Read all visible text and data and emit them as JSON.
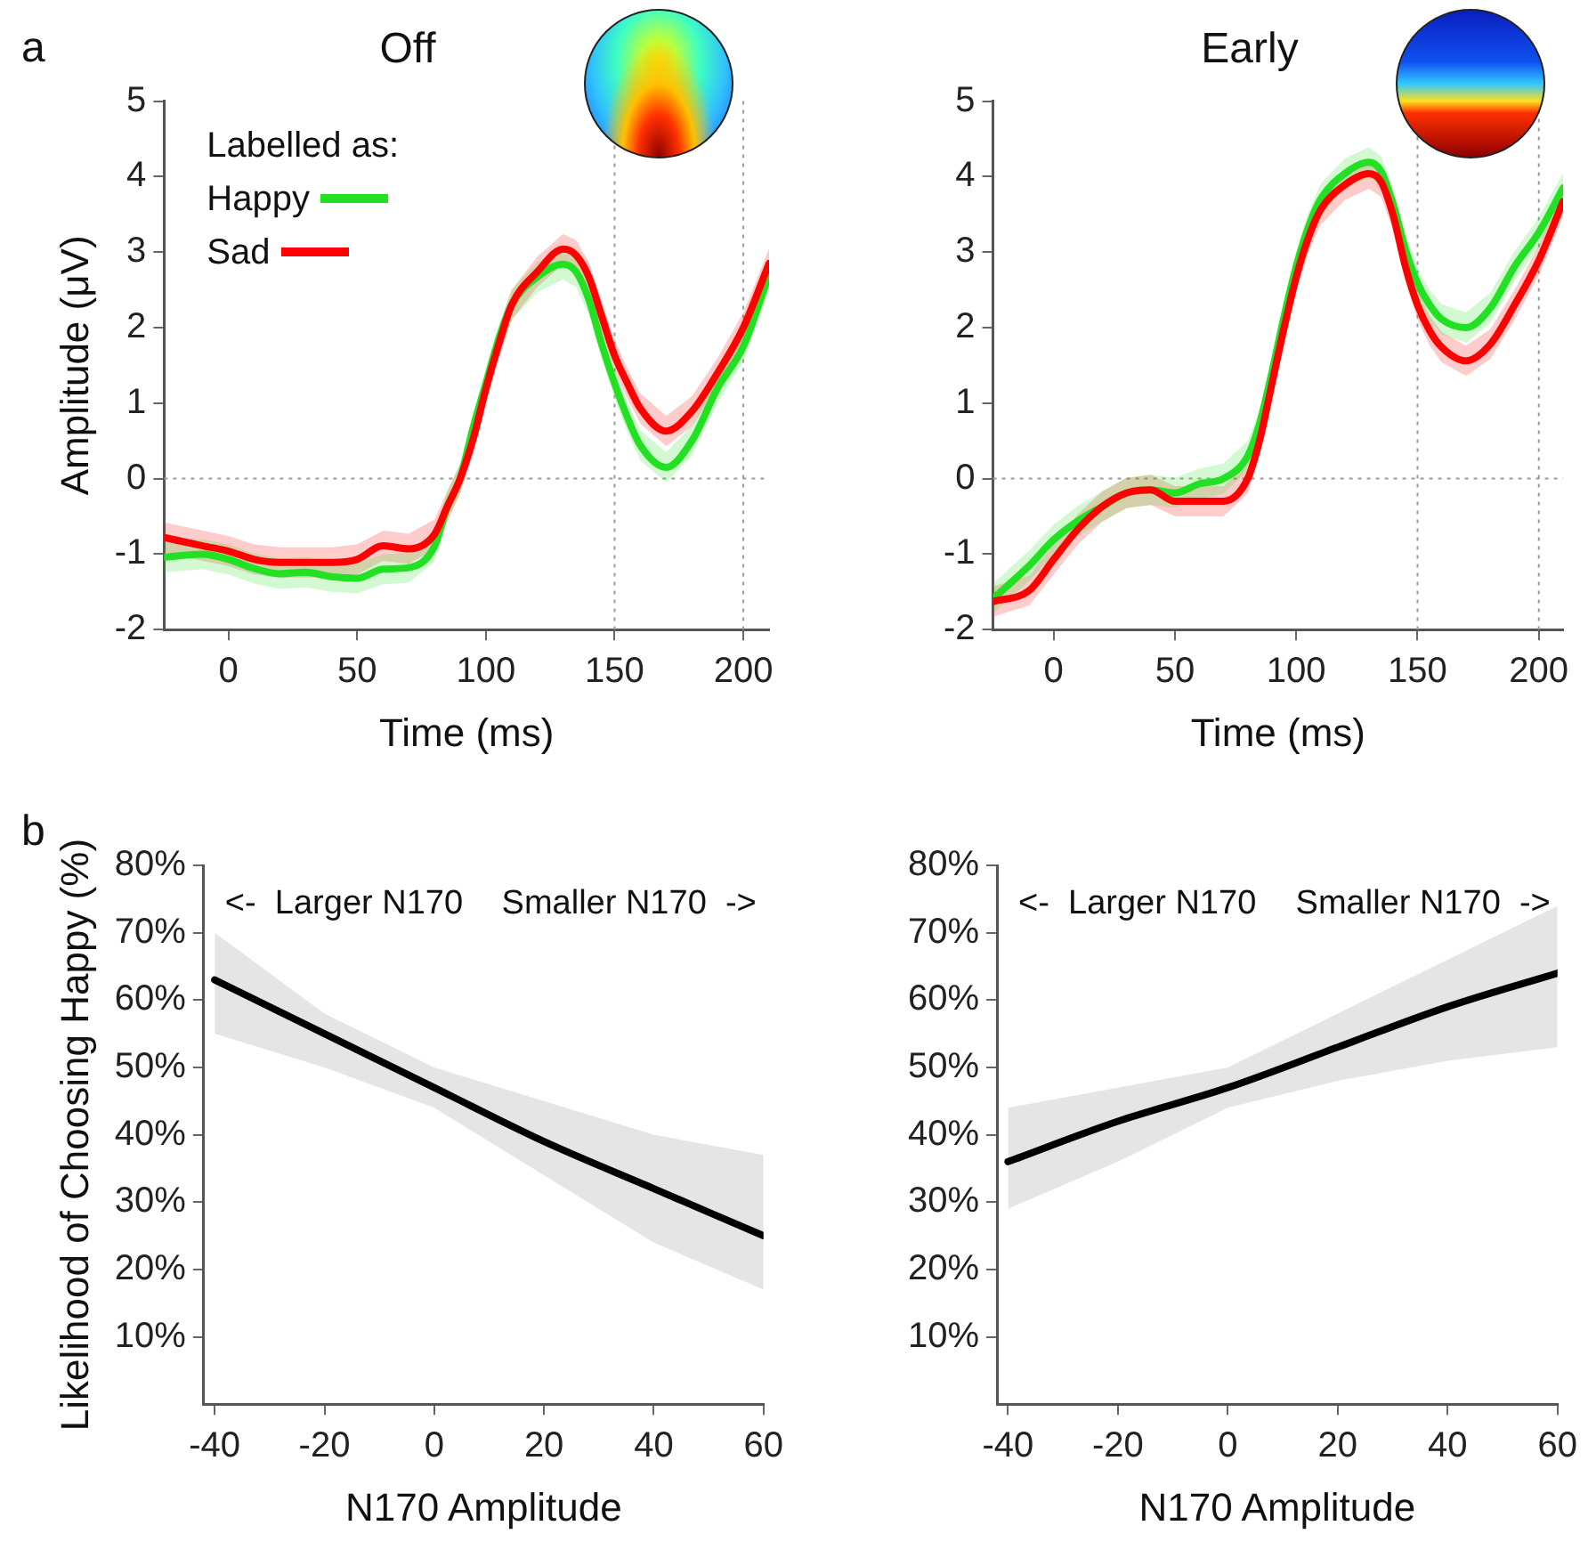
{
  "chart_data": [
    {
      "type": "line",
      "title": "Off",
      "xlabel": "Time (ms)",
      "ylabel": "Amplitude (μV)",
      "legend": "top left",
      "legend_title": "Labelled as:",
      "annotations": [
        "a"
      ],
      "x": [
        -25,
        -10,
        0,
        10,
        20,
        30,
        40,
        50,
        60,
        70,
        80,
        85,
        90,
        95,
        100,
        105,
        110,
        120,
        130,
        135,
        140,
        145,
        150,
        155,
        160,
        170,
        180,
        190,
        200,
        210
      ],
      "xlim": [
        -25,
        210
      ],
      "xticks": [
        0,
        50,
        100,
        150,
        200
      ],
      "ylim": [
        -2,
        5
      ],
      "yticks": [
        -2,
        -1,
        0,
        1,
        2,
        3,
        4,
        5
      ],
      "ref_lines": [
        {
          "axis": "y",
          "value": 0,
          "color": "#9a9a9a",
          "line_style": "dotted"
        },
        {
          "axis": "x",
          "value": 150,
          "color": "#9a9a9a",
          "line_style": "dotted"
        },
        {
          "axis": "x",
          "value": 200,
          "color": "#9a9a9a",
          "line_style": "dotted"
        }
      ],
      "series": [
        {
          "name": "Happy",
          "color": "#22e022",
          "values": [
            -1.04,
            -1.0,
            -1.07,
            -1.19,
            -1.26,
            -1.24,
            -1.3,
            -1.32,
            -1.2,
            -1.18,
            -0.9,
            -0.37,
            0,
            0.67,
            1.26,
            1.85,
            2.3,
            2.67,
            2.84,
            2.74,
            2.37,
            1.78,
            1.26,
            0.81,
            0.44,
            0.15,
            0.5,
            1.2,
            1.75,
            2.7
          ],
          "lower": [
            -1.24,
            -1.2,
            -1.27,
            -1.39,
            -1.46,
            -1.44,
            -1.5,
            -1.52,
            -1.4,
            -1.38,
            -1.1,
            -0.57,
            -0.2,
            0.47,
            1.06,
            1.65,
            2.1,
            2.47,
            2.64,
            2.54,
            2.17,
            1.58,
            1.06,
            0.61,
            0.24,
            -0.05,
            0.3,
            1.0,
            1.55,
            2.5
          ],
          "upper": [
            -0.84,
            -0.8,
            -0.87,
            -0.99,
            -1.06,
            -1.04,
            -1.1,
            -1.12,
            -1.0,
            -0.98,
            -0.7,
            -0.17,
            0.2,
            0.87,
            1.46,
            2.05,
            2.5,
            2.87,
            3.04,
            2.94,
            2.57,
            1.98,
            1.46,
            1.01,
            0.64,
            0.35,
            0.7,
            1.4,
            1.95,
            2.9
          ]
        },
        {
          "name": "Sad",
          "color": "#ff0000",
          "values": [
            -0.78,
            -0.89,
            -0.96,
            -1.07,
            -1.11,
            -1.11,
            -1.11,
            -1.07,
            -0.89,
            -0.93,
            -0.74,
            -0.37,
            0,
            0.52,
            1.19,
            1.78,
            2.3,
            2.74,
            3.04,
            2.96,
            2.67,
            2.15,
            1.63,
            1.26,
            0.93,
            0.63,
            0.89,
            1.4,
            2.0,
            2.85
          ],
          "lower": [
            -0.98,
            -1.09,
            -1.16,
            -1.27,
            -1.31,
            -1.31,
            -1.31,
            -1.27,
            -1.09,
            -1.13,
            -0.94,
            -0.57,
            -0.2,
            0.32,
            0.99,
            1.58,
            2.1,
            2.54,
            2.84,
            2.76,
            2.47,
            1.95,
            1.43,
            1.06,
            0.73,
            0.43,
            0.69,
            1.2,
            1.8,
            2.65
          ],
          "upper": [
            -0.58,
            -0.69,
            -0.76,
            -0.87,
            -0.91,
            -0.91,
            -0.91,
            -0.87,
            -0.69,
            -0.73,
            -0.54,
            -0.17,
            0.2,
            0.72,
            1.39,
            1.98,
            2.5,
            2.94,
            3.24,
            3.16,
            2.87,
            2.35,
            1.83,
            1.46,
            1.13,
            0.83,
            1.09,
            1.6,
            2.2,
            3.05
          ]
        }
      ]
    },
    {
      "type": "line",
      "title": "Early",
      "xlabel": "Time (ms)",
      "x": [
        -25,
        -10,
        0,
        10,
        20,
        30,
        40,
        50,
        60,
        70,
        80,
        85,
        90,
        95,
        100,
        105,
        110,
        120,
        130,
        135,
        140,
        145,
        150,
        155,
        160,
        170,
        180,
        190,
        200,
        210
      ],
      "xlim": [
        -25,
        210
      ],
      "xticks": [
        0,
        50,
        100,
        150,
        200
      ],
      "ylim": [
        -2,
        5
      ],
      "yticks": [
        -2,
        -1,
        0,
        1,
        2,
        3,
        4,
        5
      ],
      "ref_lines": [
        {
          "axis": "y",
          "value": 0,
          "color": "#9a9a9a",
          "line_style": "dotted"
        },
        {
          "axis": "x",
          "value": 150,
          "color": "#9a9a9a",
          "line_style": "dotted"
        },
        {
          "axis": "x",
          "value": 200,
          "color": "#9a9a9a",
          "line_style": "dotted"
        }
      ],
      "series": [
        {
          "color": "#22e022",
          "values": [
            -1.59,
            -1.15,
            -0.81,
            -0.56,
            -0.37,
            -0.19,
            -0.15,
            -0.19,
            -0.07,
            0,
            0.3,
            0.74,
            1.41,
            2.15,
            2.81,
            3.33,
            3.7,
            4.04,
            4.19,
            4.07,
            3.63,
            3.04,
            2.59,
            2.3,
            2.11,
            2.0,
            2.26,
            2.81,
            3.26,
            3.85
          ],
          "lower": [
            -1.79,
            -1.35,
            -1.01,
            -0.76,
            -0.57,
            -0.39,
            -0.35,
            -0.39,
            -0.27,
            -0.2,
            0.1,
            0.54,
            1.21,
            1.95,
            2.61,
            3.13,
            3.5,
            3.84,
            3.99,
            3.87,
            3.43,
            2.84,
            2.39,
            2.1,
            1.91,
            1.8,
            2.06,
            2.61,
            3.06,
            3.65
          ],
          "upper": [
            -1.39,
            -0.95,
            -0.61,
            -0.36,
            -0.17,
            0.01,
            0.05,
            0.01,
            0.13,
            0.2,
            0.5,
            0.94,
            1.61,
            2.35,
            3.01,
            3.53,
            3.9,
            4.24,
            4.39,
            4.27,
            3.83,
            3.24,
            2.79,
            2.5,
            2.31,
            2.2,
            2.46,
            3.01,
            3.46,
            4.05
          ]
        },
        {
          "color": "#ff0000",
          "values": [
            -1.63,
            -1.48,
            -1.07,
            -0.67,
            -0.37,
            -0.19,
            -0.15,
            -0.3,
            -0.3,
            -0.3,
            0,
            0.52,
            1.26,
            2.0,
            2.67,
            3.19,
            3.56,
            3.89,
            4.04,
            3.93,
            3.48,
            2.81,
            2.3,
            1.96,
            1.74,
            1.56,
            1.78,
            2.3,
            2.89,
            3.67
          ],
          "lower": [
            -1.83,
            -1.68,
            -1.27,
            -0.87,
            -0.57,
            -0.39,
            -0.35,
            -0.5,
            -0.5,
            -0.5,
            -0.2,
            0.32,
            1.06,
            1.8,
            2.47,
            2.99,
            3.36,
            3.69,
            3.84,
            3.73,
            3.28,
            2.61,
            2.1,
            1.76,
            1.54,
            1.36,
            1.58,
            2.1,
            2.69,
            3.47
          ],
          "upper": [
            -1.43,
            -1.28,
            -0.87,
            -0.47,
            -0.17,
            0.01,
            0.05,
            -0.1,
            -0.1,
            -0.1,
            0.2,
            0.72,
            1.46,
            2.2,
            2.87,
            3.39,
            3.76,
            4.09,
            4.24,
            4.13,
            3.68,
            3.01,
            2.5,
            2.16,
            1.94,
            1.76,
            1.98,
            2.5,
            3.09,
            3.87
          ]
        }
      ]
    },
    {
      "type": "line",
      "xlabel": "N170 Amplitude",
      "ylabel": "Likelihood of Choosing Happy (%)",
      "annotations": [
        "b",
        "<-  Larger N170",
        "Smaller N170  ->"
      ],
      "x": [
        -40,
        -20,
        0,
        20,
        40,
        60
      ],
      "xlim": [
        -42,
        60
      ],
      "xticks": [
        -40,
        -20,
        0,
        20,
        40,
        60
      ],
      "ylim": [
        0,
        80
      ],
      "yticks": [
        {
          "value": 10,
          "label": "10%"
        },
        {
          "value": 20,
          "label": "20%"
        },
        {
          "value": 30,
          "label": "30%"
        },
        {
          "value": 40,
          "label": "40%"
        },
        {
          "value": 50,
          "label": "50%"
        },
        {
          "value": 60,
          "label": "60%"
        },
        {
          "value": 70,
          "label": "70%"
        },
        {
          "value": 80,
          "label": "80%"
        }
      ],
      "series": [
        {
          "color": "#000000",
          "values": [
            63,
            55,
            47,
            39,
            32,
            25
          ],
          "lower": [
            55,
            50,
            44,
            34,
            24,
            17
          ],
          "upper": [
            70,
            58,
            50,
            45,
            40,
            37
          ]
        }
      ]
    },
    {
      "type": "line",
      "xlabel": "N170 Amplitude",
      "annotations": [
        "<-  Larger N170",
        "Smaller N170  ->"
      ],
      "x": [
        -40,
        -20,
        0,
        20,
        40,
        60
      ],
      "xlim": [
        -42,
        60
      ],
      "xticks": [
        -40,
        -20,
        0,
        20,
        40,
        60
      ],
      "ylim": [
        0,
        80
      ],
      "yticks": [
        {
          "value": 10,
          "label": "10%"
        },
        {
          "value": 20,
          "label": "20%"
        },
        {
          "value": 30,
          "label": "30%"
        },
        {
          "value": 40,
          "label": "40%"
        },
        {
          "value": 50,
          "label": "50%"
        },
        {
          "value": 60,
          "label": "60%"
        },
        {
          "value": 70,
          "label": "70%"
        },
        {
          "value": 80,
          "label": "80%"
        }
      ],
      "series": [
        {
          "color": "#000000",
          "values": [
            36,
            42,
            47,
            53,
            59,
            64
          ],
          "lower": [
            29,
            36,
            44,
            48,
            51,
            53
          ],
          "upper": [
            44,
            47,
            50,
            58,
            66,
            74
          ]
        }
      ]
    }
  ]
}
